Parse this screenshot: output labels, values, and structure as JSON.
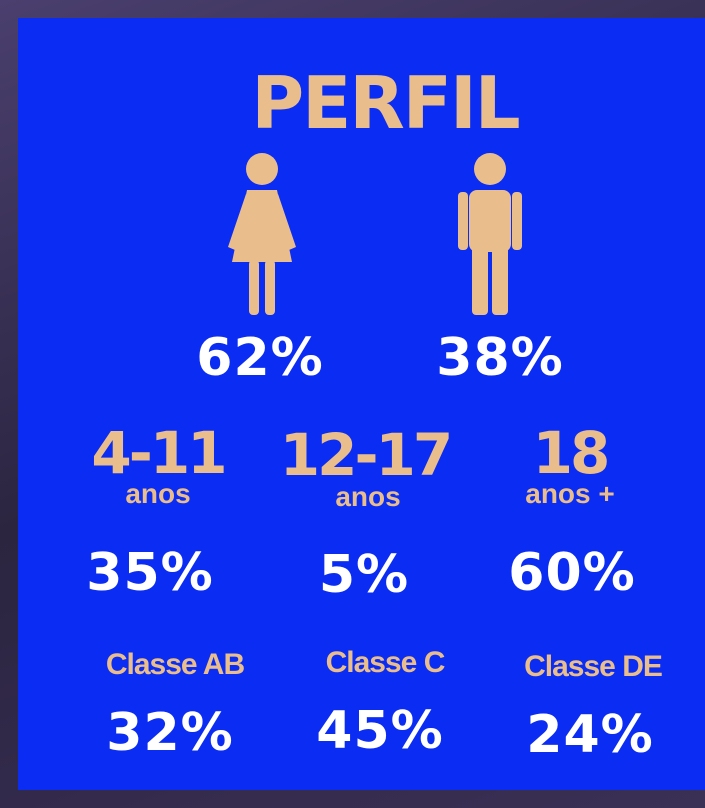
{
  "title": "PERFIL",
  "gender": [
    {
      "value": "62%"
    },
    {
      "value": "38%"
    }
  ],
  "age": [
    {
      "range": "4-11",
      "unit": "anos",
      "value": "35%"
    },
    {
      "range": "12-17",
      "unit": "anos",
      "value": "5%"
    },
    {
      "range": "18",
      "unit": "anos +",
      "value": "60%"
    }
  ],
  "class": [
    {
      "label": "Classe AB",
      "value": "32%"
    },
    {
      "label": "Classe C",
      "value": "45%"
    },
    {
      "label": "Classe DE",
      "value": "24%"
    }
  ]
}
